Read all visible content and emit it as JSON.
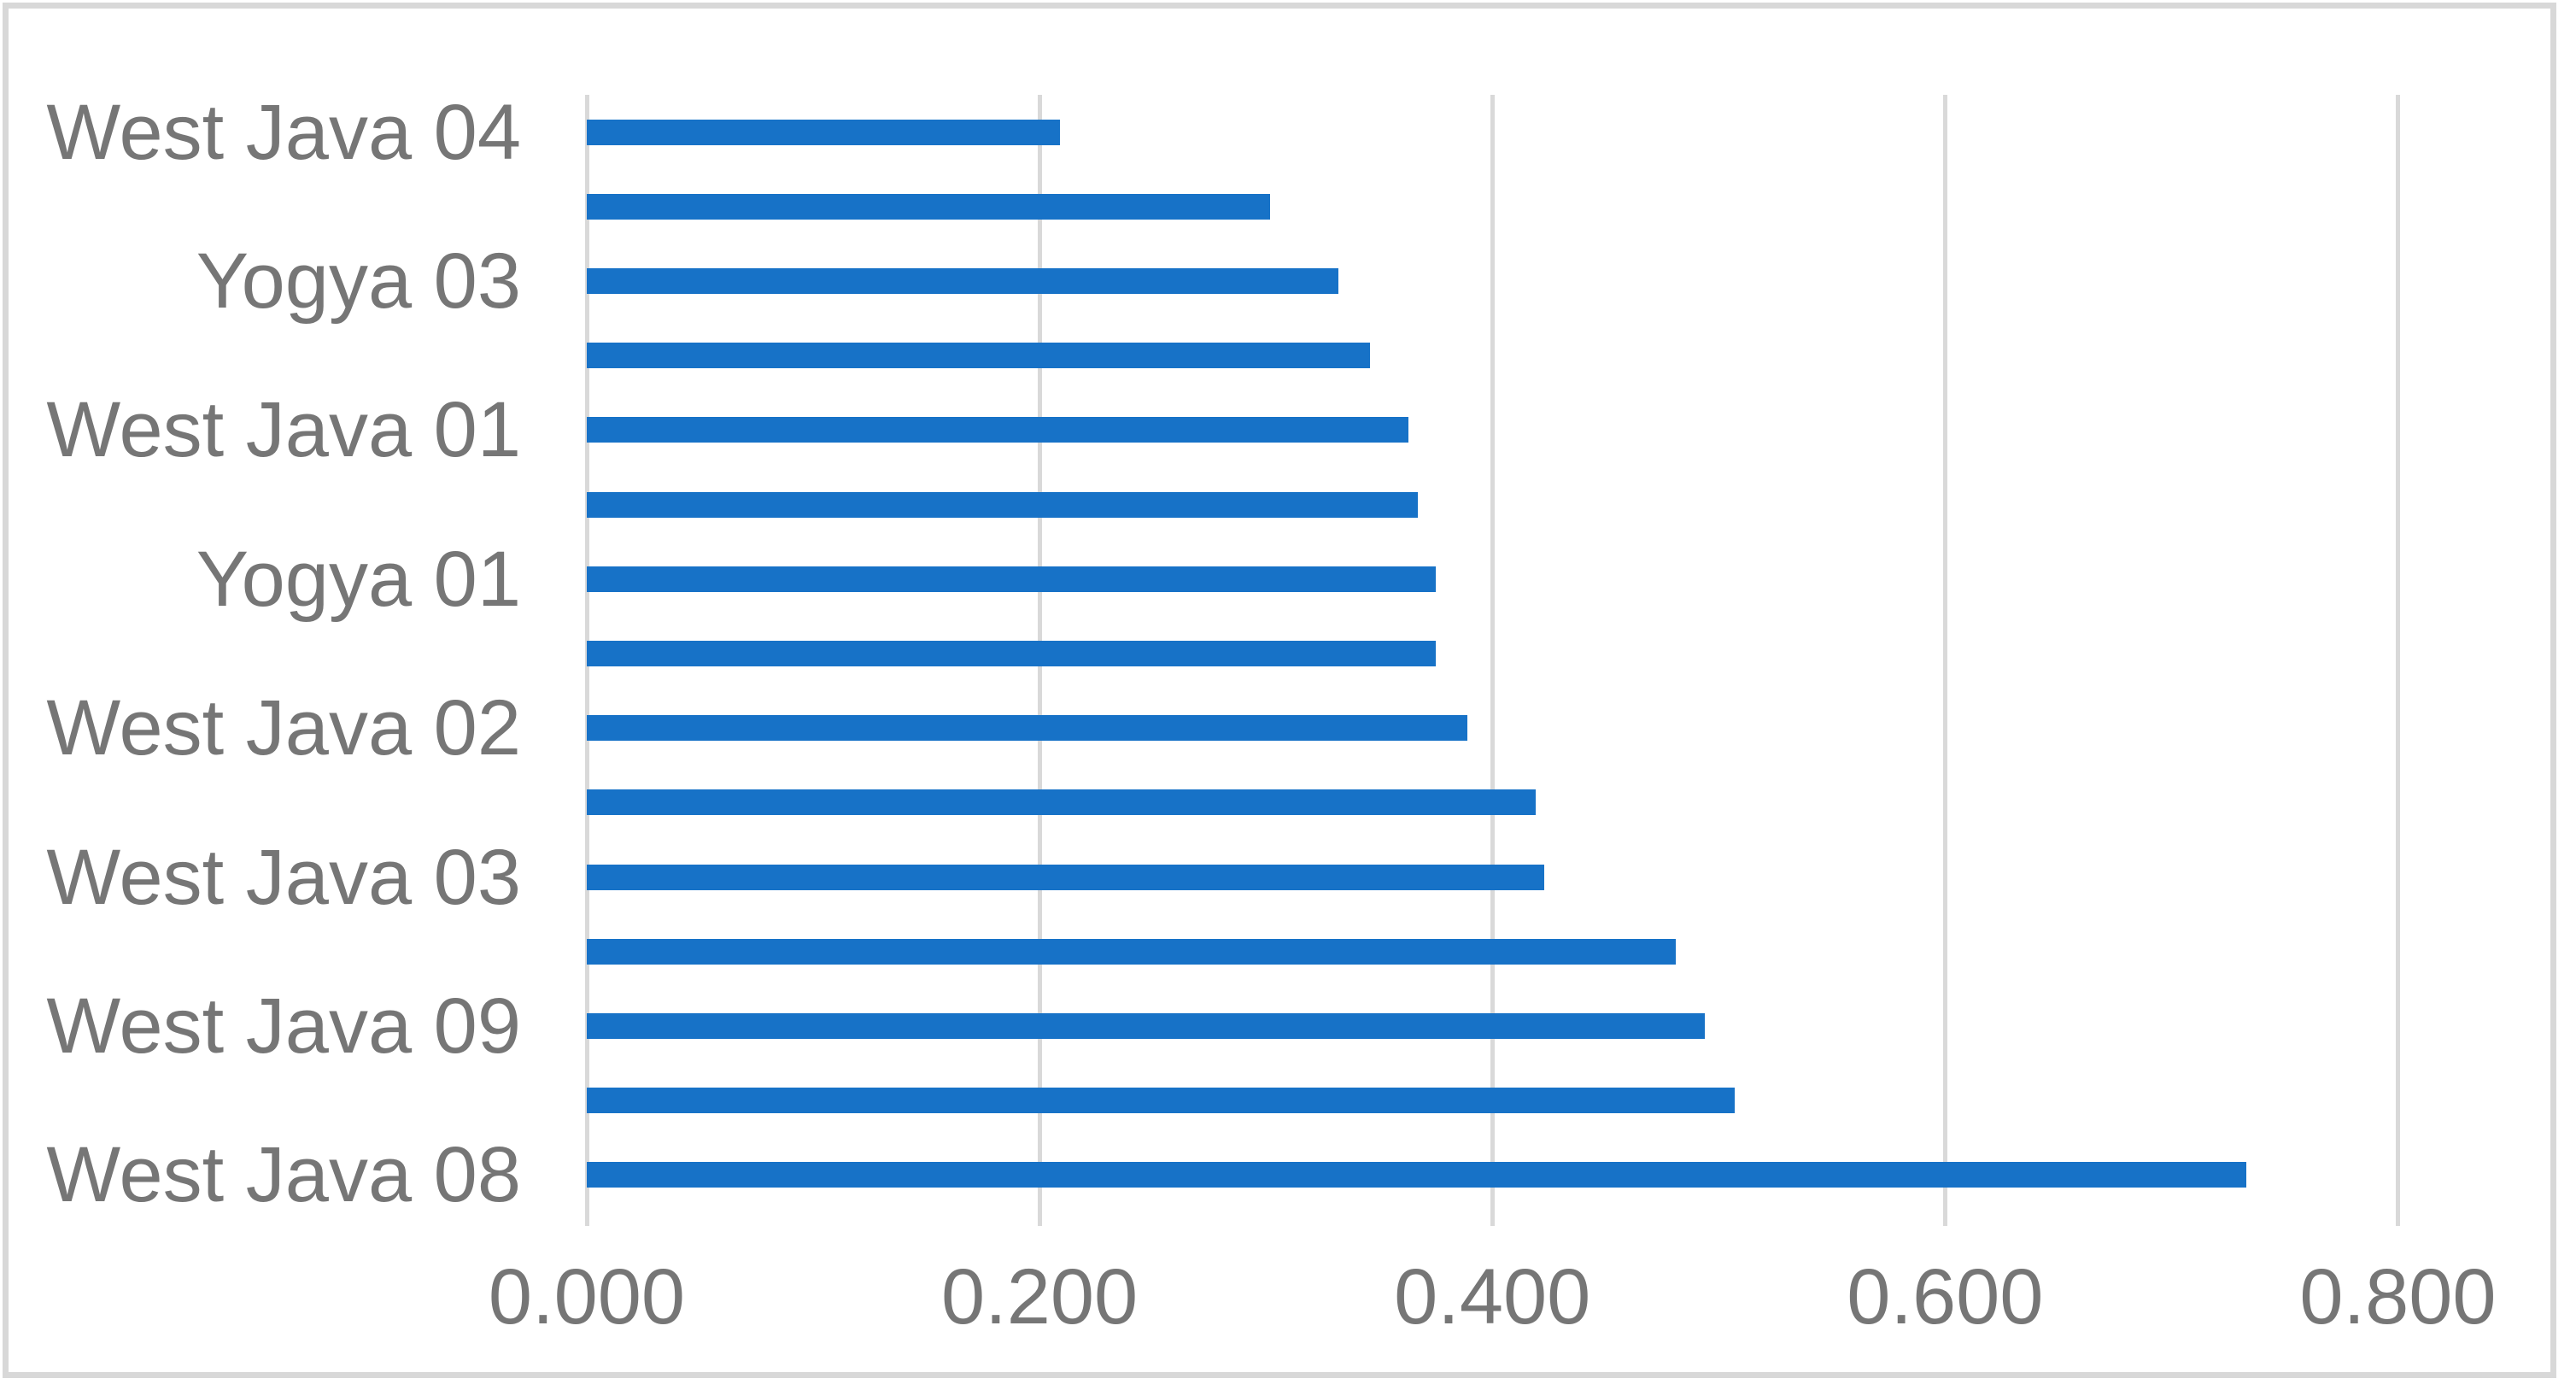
{
  "chart": {
    "bar_color": "#1772c7",
    "label_color": "#767676",
    "gridline_color": "#d9d9d9",
    "frame_border_color": "#d8d8d8",
    "background_color": "#ffffff"
  },
  "chart_data": {
    "type": "bar",
    "orientation": "horizontal",
    "title": "",
    "xlabel": "",
    "ylabel": "",
    "grid": true,
    "legend": false,
    "xlim": [
      0,
      0.85
    ],
    "x_ticks": [
      {
        "label": "0.000",
        "value": 0.0
      },
      {
        "label": "0.200",
        "value": 0.2
      },
      {
        "label": "0.400",
        "value": 0.4
      },
      {
        "label": "0.600",
        "value": 0.6
      },
      {
        "label": "0.800",
        "value": 0.8
      }
    ],
    "note": "Bars listed top to bottom; only alternating bars carry visible category labels.",
    "bars": [
      {
        "label": "West Java 04",
        "value": 0.209
      },
      {
        "label": "",
        "value": 0.302
      },
      {
        "label": "Yogya 03",
        "value": 0.332
      },
      {
        "label": "",
        "value": 0.346
      },
      {
        "label": "West Java 01",
        "value": 0.363
      },
      {
        "label": "",
        "value": 0.367
      },
      {
        "label": "Yogya 01",
        "value": 0.375
      },
      {
        "label": "",
        "value": 0.375
      },
      {
        "label": "West Java 02",
        "value": 0.389
      },
      {
        "label": "",
        "value": 0.419
      },
      {
        "label": "West Java 03",
        "value": 0.423
      },
      {
        "label": "",
        "value": 0.481
      },
      {
        "label": "West Java 09",
        "value": 0.494
      },
      {
        "label": "",
        "value": 0.507
      },
      {
        "label": "West Java 08",
        "value": 0.733
      }
    ]
  }
}
